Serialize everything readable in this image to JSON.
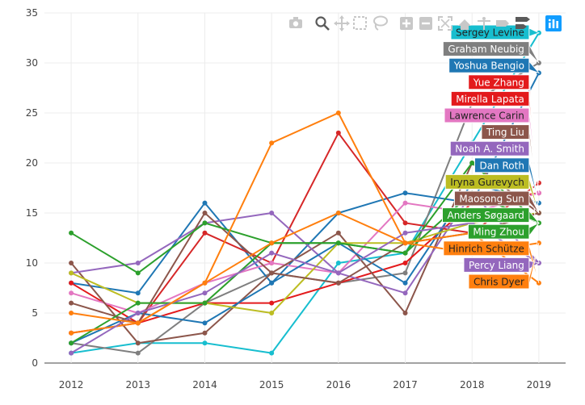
{
  "modebar": {
    "buttons": [
      {
        "icon": "camera-icon",
        "title": "Download plot as a png",
        "active": false
      },
      {
        "icon": "zoom-icon",
        "title": "Zoom",
        "active": true
      },
      {
        "icon": "pan-icon",
        "title": "Pan",
        "active": false
      },
      {
        "icon": "box-select-icon",
        "title": "Box Select",
        "active": false
      },
      {
        "icon": "lasso-select-icon",
        "title": "Lasso Select",
        "active": false
      },
      {
        "icon": "zoom-in-icon",
        "title": "Zoom in",
        "active": false
      },
      {
        "icon": "zoom-out-icon",
        "title": "Zoom out",
        "active": false
      },
      {
        "icon": "autoscale-icon",
        "title": "Autoscale",
        "active": false
      },
      {
        "icon": "reset-axes-icon",
        "title": "Reset axes",
        "active": false
      },
      {
        "icon": "spike-lines-icon",
        "title": "Toggle Spike Lines",
        "active": false
      },
      {
        "icon": "hover-closest-icon",
        "title": "Show closest data on hover",
        "active": false
      },
      {
        "icon": "hover-compare-icon",
        "title": "Compare data on hover",
        "active": false
      },
      {
        "icon": "plotly-logo-icon",
        "title": "Produced with Plotly",
        "active": false
      }
    ]
  },
  "chart_data": {
    "type": "line",
    "title": "",
    "xlabel": "",
    "ylabel": "",
    "x": [
      2012,
      2013,
      2014,
      2015,
      2016,
      2017,
      2018,
      2019
    ],
    "xlim": [
      2011.6,
      2019.4
    ],
    "ylim": [
      0,
      35
    ],
    "yticks": [
      0,
      5,
      10,
      15,
      20,
      25,
      30,
      35
    ],
    "xticks": [
      "2012",
      "2013",
      "2014",
      "2015",
      "2016",
      "2017",
      "2018",
      "2019"
    ],
    "grid": true,
    "legend": "none",
    "series": [
      {
        "name": "Sergey Levine",
        "color": "#17becf",
        "values": [
          1,
          2,
          2,
          1,
          10,
          11,
          22,
          33
        ]
      },
      {
        "name": "Graham Neubig",
        "color": "#7f7f7f",
        "values": [
          2,
          1,
          6,
          9,
          8,
          9,
          26,
          30
        ]
      },
      {
        "name": "Yoshua Bengio",
        "color": "#1f77b4",
        "values": [
          8,
          7,
          16,
          8,
          15,
          17,
          16,
          29
        ]
      },
      {
        "name": "Yue Zhang",
        "color": "#d62728",
        "values": [
          3,
          4,
          13,
          10,
          23,
          14,
          13,
          18
        ]
      },
      {
        "name": "Mirella Lapata",
        "color": "#e31a1c",
        "values": [
          8,
          4,
          6,
          6,
          8,
          10,
          16,
          17
        ]
      },
      {
        "name": "Lawrence Carin",
        "color": "#e377c2",
        "values": [
          7,
          5,
          8,
          10,
          9,
          16,
          15,
          17
        ]
      },
      {
        "name": "Ting Liu",
        "color": "#8c564b",
        "values": [
          10,
          2,
          3,
          9,
          13,
          5,
          20,
          15
        ]
      },
      {
        "name": "Noah A. Smith",
        "color": "#9467bd",
        "values": [
          9,
          10,
          14,
          15,
          9,
          7,
          17,
          10
        ]
      },
      {
        "name": "Dan Roth",
        "color": "#1f77b4",
        "values": [
          2,
          5,
          4,
          8,
          12,
          8,
          18,
          16
        ]
      },
      {
        "name": "Iryna Gurevych",
        "color": "#bcbd22",
        "values": [
          9,
          6,
          6,
          5,
          12,
          12,
          14,
          15
        ]
      },
      {
        "name": "Maosong Sun",
        "color": "#8c564b",
        "values": [
          6,
          4,
          15,
          9,
          8,
          12,
          13,
          15
        ]
      },
      {
        "name": "Anders Søgaard",
        "color": "#2ca02c",
        "values": [
          13,
          9,
          14,
          12,
          12,
          11,
          20,
          14
        ]
      },
      {
        "name": "Ming Zhou",
        "color": "#2ca02c",
        "values": [
          2,
          6,
          6,
          12,
          12,
          11,
          17,
          14
        ]
      },
      {
        "name": "Hinrich Schütze",
        "color": "#ff7f0e",
        "values": [
          3,
          4,
          8,
          22,
          25,
          12,
          13,
          8
        ]
      },
      {
        "name": "Percy Liang",
        "color": "#9467bd",
        "values": [
          1,
          5,
          7,
          11,
          9,
          13,
          14,
          10
        ]
      },
      {
        "name": "Chris Dyer",
        "color": "#ff7f0e",
        "values": [
          5,
          4,
          8,
          12,
          15,
          12,
          11,
          12
        ]
      }
    ],
    "hover_labels": [
      {
        "series": "Sergey Levine",
        "bg": "#17becf",
        "text_color": "#222222"
      },
      {
        "series": "Graham Neubig",
        "bg": "#7f7f7f",
        "text_color": "#ffffff"
      },
      {
        "series": "Yoshua Bengio",
        "bg": "#1f77b4",
        "text_color": "#ffffff"
      },
      {
        "series": "Yue Zhang",
        "bg": "#e31a1c",
        "text_color": "#ffffff"
      },
      {
        "series": "Mirella Lapata",
        "bg": "#e31a1c",
        "text_color": "#ffffff"
      },
      {
        "series": "Lawrence Carin",
        "bg": "#e377c2",
        "text_color": "#222222"
      },
      {
        "series": "Ting Liu",
        "bg": "#8c564b",
        "text_color": "#ffffff"
      },
      {
        "series": "Noah A. Smith",
        "bg": "#9467bd",
        "text_color": "#ffffff"
      },
      {
        "series": "Dan Roth",
        "bg": "#1f77b4",
        "text_color": "#ffffff"
      },
      {
        "series": "Iryna Gurevych",
        "bg": "#bcbd22",
        "text_color": "#222222"
      },
      {
        "series": "Maosong Sun",
        "bg": "#8c564b",
        "text_color": "#ffffff"
      },
      {
        "series": "Anders Søgaard",
        "bg": "#2ca02c",
        "text_color": "#ffffff"
      },
      {
        "series": "Ming Zhou",
        "bg": "#2ca02c",
        "text_color": "#ffffff"
      },
      {
        "series": "Hinrich Schütze",
        "bg": "#ff7f0e",
        "text_color": "#222222"
      },
      {
        "series": "Percy Liang",
        "bg": "#9467bd",
        "text_color": "#ffffff"
      },
      {
        "series": "Chris Dyer",
        "bg": "#ff7f0e",
        "text_color": "#222222"
      }
    ]
  }
}
